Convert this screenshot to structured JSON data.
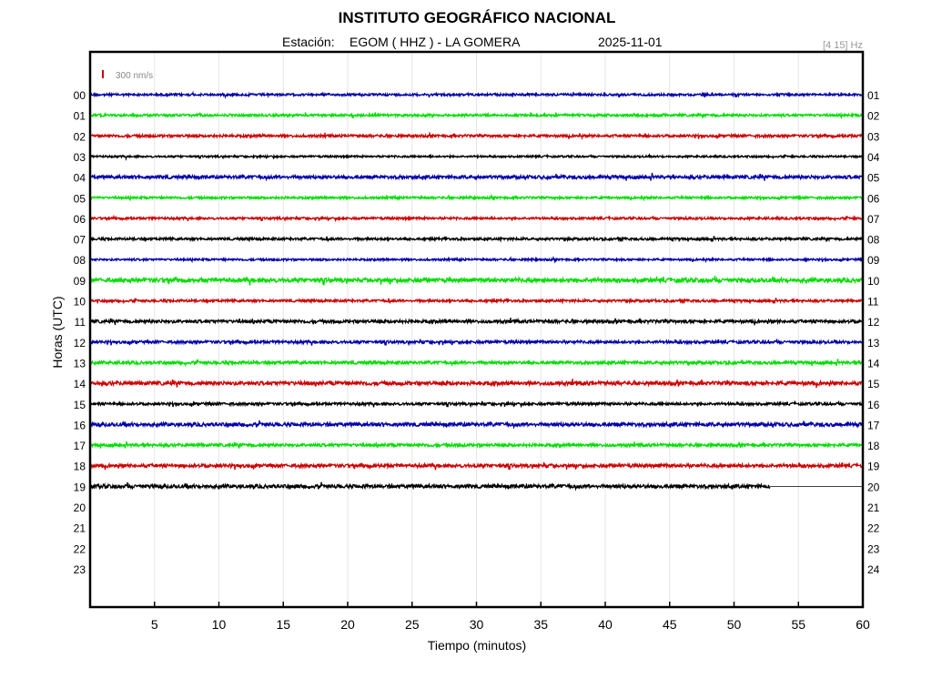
{
  "header": {
    "title": "INSTITUTO GEOGRÁFICO NACIONAL",
    "station_label": "Estación:",
    "station": "EGOM ( HHZ ) - LA GOMERA",
    "date": "2025-11-01",
    "filter": "[4 15] Hz"
  },
  "scale": {
    "label": "300 nm/s",
    "color": "#cc0000"
  },
  "chart_data": {
    "type": "line",
    "title": "INSTITUTO GEOGRÁFICO NACIONAL",
    "xlabel": "Tiempo (minutos)",
    "ylabel": "Horas (UTC)",
    "xlim": [
      0,
      60
    ],
    "x_ticks": [
      5,
      10,
      15,
      20,
      25,
      30,
      35,
      40,
      45,
      50,
      55,
      60
    ],
    "grid": true,
    "left_hour_labels": [
      "00",
      "01",
      "02",
      "03",
      "04",
      "05",
      "06",
      "07",
      "08",
      "09",
      "10",
      "11",
      "12",
      "13",
      "14",
      "15",
      "16",
      "17",
      "18",
      "19",
      "20",
      "21",
      "22",
      "23"
    ],
    "right_hour_labels": [
      "01",
      "02",
      "03",
      "04",
      "05",
      "06",
      "07",
      "08",
      "09",
      "10",
      "11",
      "12",
      "13",
      "14",
      "15",
      "16",
      "17",
      "18",
      "19",
      "20",
      "21",
      "22",
      "23",
      "24"
    ],
    "trace_colors": [
      "#0000aa",
      "#00dd00",
      "#cc0000",
      "#000000"
    ],
    "traces": [
      {
        "hour": 0,
        "start_min": 0,
        "end_min": 60,
        "amplitude": 1.2
      },
      {
        "hour": 1,
        "start_min": 0,
        "end_min": 60,
        "amplitude": 1.3
      },
      {
        "hour": 2,
        "start_min": 0,
        "end_min": 60,
        "amplitude": 1.4
      },
      {
        "hour": 3,
        "start_min": 0,
        "end_min": 60,
        "amplitude": 1.0
      },
      {
        "hour": 4,
        "start_min": 0,
        "end_min": 60,
        "amplitude": 1.8
      },
      {
        "hour": 5,
        "start_min": 0,
        "end_min": 60,
        "amplitude": 1.2
      },
      {
        "hour": 6,
        "start_min": 0,
        "end_min": 60,
        "amplitude": 1.2
      },
      {
        "hour": 7,
        "start_min": 0,
        "end_min": 60,
        "amplitude": 1.3
      },
      {
        "hour": 8,
        "start_min": 0,
        "end_min": 60,
        "amplitude": 1.1
      },
      {
        "hour": 9,
        "start_min": 0,
        "end_min": 60,
        "amplitude": 2.2
      },
      {
        "hour": 10,
        "start_min": 0,
        "end_min": 60,
        "amplitude": 1.3
      },
      {
        "hour": 11,
        "start_min": 0,
        "end_min": 60,
        "amplitude": 1.7
      },
      {
        "hour": 12,
        "start_min": 0,
        "end_min": 60,
        "amplitude": 1.5
      },
      {
        "hour": 13,
        "start_min": 0,
        "end_min": 60,
        "amplitude": 1.6
      },
      {
        "hour": 14,
        "start_min": 0,
        "end_min": 60,
        "amplitude": 2.0
      },
      {
        "hour": 15,
        "start_min": 0,
        "end_min": 60,
        "amplitude": 1.4
      },
      {
        "hour": 16,
        "start_min": 0,
        "end_min": 60,
        "amplitude": 2.0
      },
      {
        "hour": 17,
        "start_min": 0,
        "end_min": 60,
        "amplitude": 1.6
      },
      {
        "hour": 18,
        "start_min": 0,
        "end_min": 60,
        "amplitude": 1.8
      },
      {
        "hour": 19,
        "start_min": 0,
        "end_min": 52.8,
        "amplitude": 2.0
      }
    ]
  }
}
